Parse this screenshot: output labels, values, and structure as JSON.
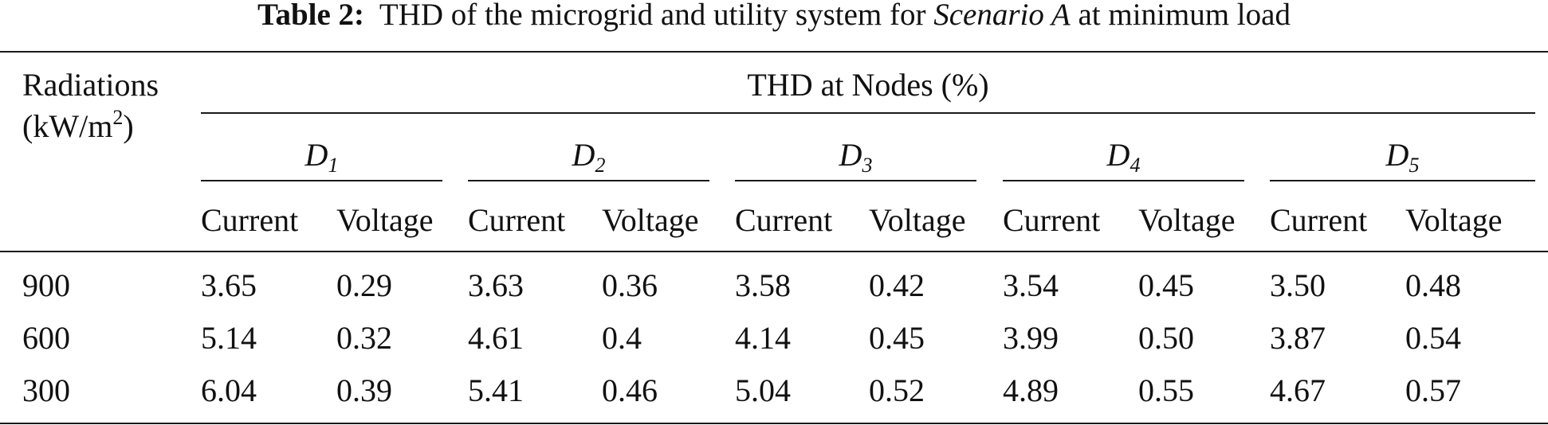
{
  "caption": {
    "label": "Table 2:",
    "text_before": "THD of the microgrid and utility system for",
    "text_italic": "Scenario A",
    "text_after": "at minimum load"
  },
  "header": {
    "row_label_line1": "Radiations",
    "row_label_unit": "(kW/m",
    "row_label_sup": "2",
    "row_label_close": ")",
    "group_title": "THD at Nodes (%)",
    "nodes": [
      {
        "letter": "D",
        "sub": "1"
      },
      {
        "letter": "D",
        "sub": "2"
      },
      {
        "letter": "D",
        "sub": "3"
      },
      {
        "letter": "D",
        "sub": "4"
      },
      {
        "letter": "D",
        "sub": "5"
      }
    ],
    "sub_columns": [
      "Current",
      "Voltage"
    ]
  },
  "rows": [
    {
      "radiation": "900",
      "values": [
        "3.65",
        "0.29",
        "3.63",
        "0.36",
        "3.58",
        "0.42",
        "3.54",
        "0.45",
        "3.50",
        "0.48"
      ]
    },
    {
      "radiation": "600",
      "values": [
        "5.14",
        "0.32",
        "4.61",
        "0.4",
        "4.14",
        "0.45",
        "3.99",
        "0.50",
        "3.87",
        "0.54"
      ]
    },
    {
      "radiation": "300",
      "values": [
        "6.04",
        "0.39",
        "5.41",
        "0.46",
        "5.04",
        "0.52",
        "4.89",
        "0.55",
        "4.67",
        "0.57"
      ]
    }
  ]
}
